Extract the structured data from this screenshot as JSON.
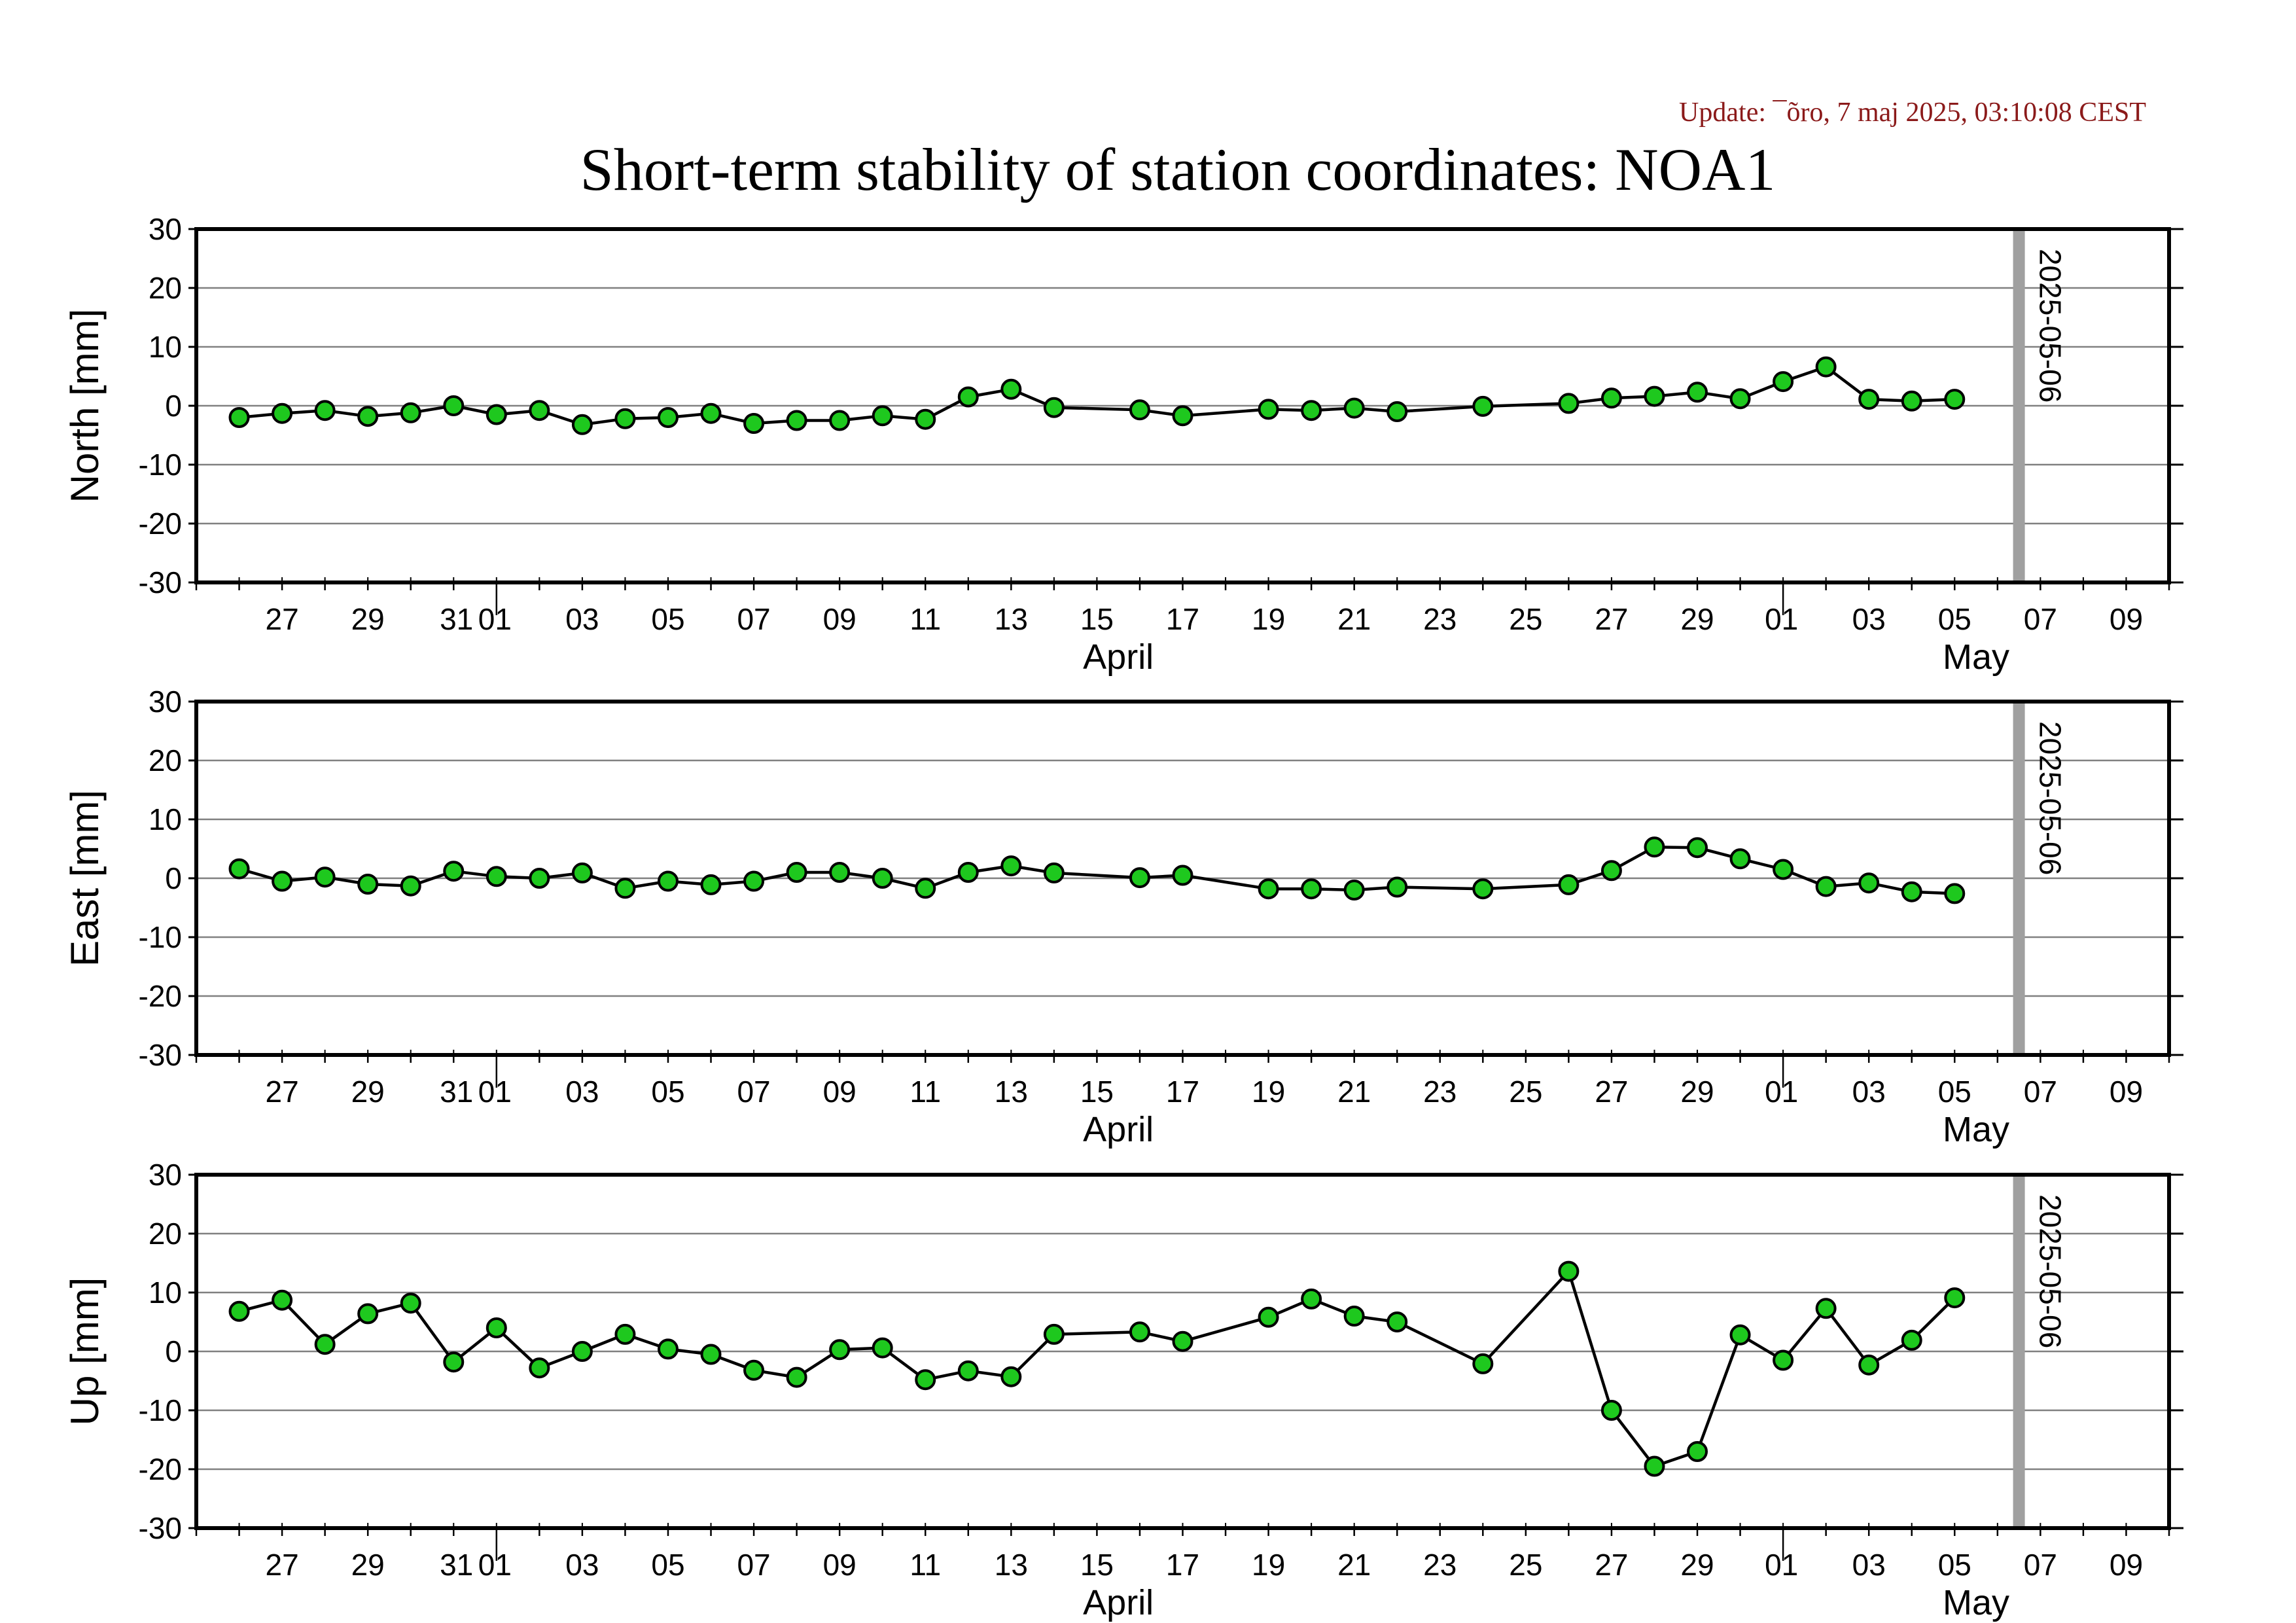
{
  "update_text": "Update: ¯õro, 7 maj 2025, 03:10:08 CEST",
  "title": "Short-term stability of station coordinates: NOA1",
  "colors": {
    "marker_fill": "#1ec81e",
    "marker_edge": "#000000",
    "line": "#000000",
    "grid": "#808080",
    "vline": "#a0a0a0",
    "update": "#8b1a1a"
  },
  "chart_data": [
    {
      "type": "line",
      "component": "North",
      "ylabel": "North [mm]",
      "ylim": [
        -30,
        30
      ],
      "yticks": [
        "30",
        "20",
        "10",
        "0",
        "-10",
        "-20",
        "-30"
      ],
      "xlim": [
        "2025-03-25",
        "2025-05-10"
      ],
      "xtick_labels": [
        "27",
        "29",
        "31",
        "01",
        "03",
        "05",
        "07",
        "09",
        "11",
        "13",
        "15",
        "17",
        "19",
        "21",
        "23",
        "25",
        "27",
        "29",
        "01",
        "03",
        "05",
        "07",
        "09"
      ],
      "month_labels": [
        "April",
        "May"
      ],
      "marker_date": "2025-05-06",
      "marker_label": "2025-05-06",
      "grid": true,
      "x": [
        "2025-03-26",
        "2025-03-27",
        "2025-03-28",
        "2025-03-29",
        "2025-03-30",
        "2025-03-31",
        "2025-04-01",
        "2025-04-02",
        "2025-04-03",
        "2025-04-04",
        "2025-04-05",
        "2025-04-06",
        "2025-04-07",
        "2025-04-08",
        "2025-04-09",
        "2025-04-10",
        "2025-04-11",
        "2025-04-12",
        "2025-04-13",
        "2025-04-14",
        "2025-04-16",
        "2025-04-17",
        "2025-04-19",
        "2025-04-20",
        "2025-04-21",
        "2025-04-22",
        "2025-04-24",
        "2025-04-26",
        "2025-04-27",
        "2025-04-28",
        "2025-04-29",
        "2025-04-30",
        "2025-05-01",
        "2025-05-02",
        "2025-05-03",
        "2025-05-04",
        "2025-05-05"
      ],
      "y": [
        -2.0,
        -1.3,
        -0.8,
        -1.8,
        -1.2,
        0.0,
        -1.5,
        -0.8,
        -3.2,
        -2.2,
        -2.0,
        -1.3,
        -3.0,
        -2.5,
        -2.5,
        -1.7,
        -2.3,
        1.5,
        2.8,
        -0.3,
        -0.7,
        -1.7,
        -0.6,
        -0.8,
        -0.4,
        -1.0,
        -0.1,
        0.4,
        1.3,
        1.6,
        2.3,
        1.2,
        4.1,
        6.6,
        1.1,
        0.8,
        1.1
      ]
    },
    {
      "type": "line",
      "component": "East",
      "ylabel": "East [mm]",
      "ylim": [
        -30,
        30
      ],
      "yticks": [
        "30",
        "20",
        "10",
        "0",
        "-10",
        "-20",
        "-30"
      ],
      "xlim": [
        "2025-03-25",
        "2025-05-10"
      ],
      "xtick_labels": [
        "27",
        "29",
        "31",
        "01",
        "03",
        "05",
        "07",
        "09",
        "11",
        "13",
        "15",
        "17",
        "19",
        "21",
        "23",
        "25",
        "27",
        "29",
        "01",
        "03",
        "05",
        "07",
        "09"
      ],
      "month_labels": [
        "April",
        "May"
      ],
      "marker_date": "2025-05-06",
      "marker_label": "2025-05-06",
      "grid": true,
      "x": [
        "2025-03-26",
        "2025-03-27",
        "2025-03-28",
        "2025-03-29",
        "2025-03-30",
        "2025-03-31",
        "2025-04-01",
        "2025-04-02",
        "2025-04-03",
        "2025-04-04",
        "2025-04-05",
        "2025-04-06",
        "2025-04-07",
        "2025-04-08",
        "2025-04-09",
        "2025-04-10",
        "2025-04-11",
        "2025-04-12",
        "2025-04-13",
        "2025-04-14",
        "2025-04-16",
        "2025-04-17",
        "2025-04-19",
        "2025-04-20",
        "2025-04-21",
        "2025-04-22",
        "2025-04-24",
        "2025-04-26",
        "2025-04-27",
        "2025-04-28",
        "2025-04-29",
        "2025-04-30",
        "2025-05-01",
        "2025-05-02",
        "2025-05-03",
        "2025-05-04",
        "2025-05-05"
      ],
      "y": [
        1.6,
        -0.5,
        0.2,
        -1.0,
        -1.3,
        1.2,
        0.3,
        0.0,
        0.9,
        -1.7,
        -0.5,
        -1.1,
        -0.5,
        1.0,
        1.0,
        0.0,
        -1.7,
        1.0,
        2.1,
        0.9,
        0.1,
        0.5,
        -1.8,
        -1.8,
        -2.0,
        -1.5,
        -1.8,
        -1.1,
        1.3,
        5.3,
        5.2,
        3.3,
        1.5,
        -1.4,
        -0.8,
        -2.3,
        -2.6
      ]
    },
    {
      "type": "line",
      "component": "Up",
      "ylabel": "Up [mm]",
      "ylim": [
        -30,
        30
      ],
      "yticks": [
        "30",
        "20",
        "10",
        "0",
        "-10",
        "-20",
        "-30"
      ],
      "xlim": [
        "2025-03-25",
        "2025-05-10"
      ],
      "xtick_labels": [
        "27",
        "29",
        "31",
        "01",
        "03",
        "05",
        "07",
        "09",
        "11",
        "13",
        "15",
        "17",
        "19",
        "21",
        "23",
        "25",
        "27",
        "29",
        "01",
        "03",
        "05",
        "07",
        "09"
      ],
      "month_labels": [
        "April",
        "May"
      ],
      "marker_date": "2025-05-06",
      "marker_label": "2025-05-06",
      "grid": true,
      "x": [
        "2025-03-26",
        "2025-03-27",
        "2025-03-28",
        "2025-03-29",
        "2025-03-30",
        "2025-03-31",
        "2025-04-01",
        "2025-04-02",
        "2025-04-03",
        "2025-04-04",
        "2025-04-05",
        "2025-04-06",
        "2025-04-07",
        "2025-04-08",
        "2025-04-09",
        "2025-04-10",
        "2025-04-11",
        "2025-04-12",
        "2025-04-13",
        "2025-04-14",
        "2025-04-16",
        "2025-04-17",
        "2025-04-19",
        "2025-04-20",
        "2025-04-21",
        "2025-04-22",
        "2025-04-24",
        "2025-04-26",
        "2025-04-27",
        "2025-04-28",
        "2025-04-29",
        "2025-04-30",
        "2025-05-01",
        "2025-05-02",
        "2025-05-03",
        "2025-05-04",
        "2025-05-05"
      ],
      "y": [
        6.8,
        8.7,
        1.2,
        6.4,
        8.2,
        -1.8,
        4.0,
        -2.8,
        0.0,
        2.9,
        0.4,
        -0.5,
        -3.2,
        -4.4,
        0.3,
        0.6,
        -4.8,
        -3.3,
        -4.3,
        2.9,
        3.3,
        1.7,
        5.8,
        8.9,
        6.0,
        5.0,
        -2.1,
        13.6,
        -10.0,
        -19.5,
        -17.0,
        2.8,
        -1.5,
        7.3,
        -2.3,
        1.9,
        9.1
      ]
    }
  ]
}
